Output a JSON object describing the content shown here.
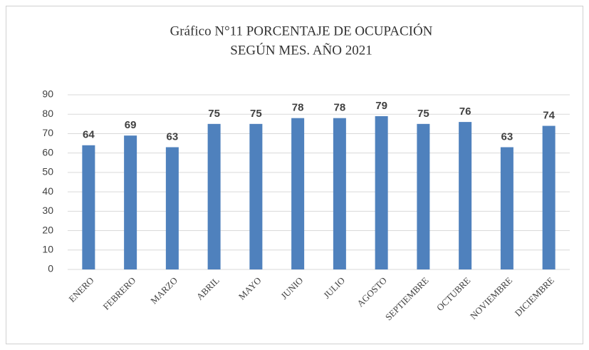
{
  "chart_data": {
    "type": "bar",
    "title": [
      "Gráfico N°11  PORCENTAJE DE OCUPACIÓN",
      "SEGÚN MES. AÑO 2021"
    ],
    "categories": [
      "ENERO",
      "FEBRERO",
      "MARZO",
      "ABRIL",
      "MAYO",
      "JUNIO",
      "JULIO",
      "AGOSTO",
      "SEPTIEMBRE",
      "OCTUBRE",
      "NOVIEMBRE",
      "DICIEMBRE"
    ],
    "values": [
      64,
      69,
      63,
      75,
      75,
      78,
      78,
      79,
      75,
      76,
      63,
      74
    ],
    "color": "#4f81bd",
    "ylim": [
      0,
      90
    ],
    "yticks": [
      0,
      10,
      20,
      30,
      40,
      50,
      60,
      70,
      80,
      90
    ],
    "grid": true
  }
}
